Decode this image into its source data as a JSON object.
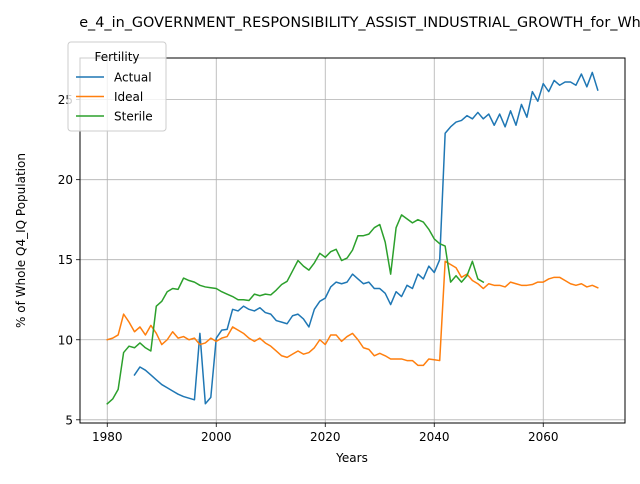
{
  "chart_data": {
    "type": "line",
    "title": "e_4_in_GOVERNMENT_RESPONSIBILITY_ASSIST_INDUSTRIAL_GROWTH_for_Wh",
    "xlabel": "Years",
    "ylabel": "% of Whole Q4_IQ Population",
    "xlim": [
      1975,
      2075
    ],
    "ylim": [
      4.8,
      27.6
    ],
    "xticks": [
      1980,
      2000,
      2020,
      2040,
      2060
    ],
    "yticks": [
      5,
      10,
      15,
      20,
      25
    ],
    "grid": true,
    "legend": {
      "title": "Fertility",
      "placement": "upper-left"
    },
    "series": [
      {
        "name": "Actual",
        "color": "#1f77b4",
        "x": [
          1985,
          1986,
          1987,
          1988,
          1989,
          1990,
          1991,
          1992,
          1993,
          1994,
          1995,
          1996,
          1997,
          1998,
          1999,
          2000,
          2001,
          2002,
          2003,
          2004,
          2005,
          2006,
          2007,
          2008,
          2009,
          2010,
          2011,
          2012,
          2013,
          2014,
          2015,
          2016,
          2017,
          2018,
          2019,
          2020,
          2021,
          2022,
          2023,
          2024,
          2025,
          2026,
          2027,
          2028,
          2029,
          2030,
          2031,
          2032,
          2033,
          2034,
          2035,
          2036,
          2037,
          2038,
          2039,
          2040,
          2041,
          2042,
          2043,
          2044,
          2045,
          2046,
          2047,
          2048,
          2049,
          2050,
          2051,
          2052,
          2053,
          2054,
          2055,
          2056,
          2057,
          2058,
          2059,
          2060,
          2061,
          2062,
          2063,
          2064,
          2065,
          2066,
          2067,
          2068,
          2069,
          2070
        ],
        "y": [
          7.8,
          8.3,
          8.1,
          7.8,
          7.5,
          7.2,
          7.0,
          6.8,
          6.6,
          6.45,
          6.35,
          6.25,
          10.4,
          6.0,
          6.4,
          10.1,
          10.6,
          10.65,
          11.9,
          11.8,
          12.1,
          11.9,
          11.8,
          12.0,
          11.7,
          11.6,
          11.2,
          11.1,
          11.0,
          11.5,
          11.6,
          11.3,
          10.8,
          11.9,
          12.4,
          12.6,
          13.3,
          13.6,
          13.5,
          13.6,
          14.1,
          13.8,
          13.5,
          13.6,
          13.2,
          13.2,
          12.9,
          12.2,
          13.0,
          12.7,
          13.4,
          13.2,
          14.1,
          13.8,
          14.6,
          14.2,
          15.0,
          22.9,
          23.3,
          23.6,
          23.7,
          24.0,
          23.8,
          24.2,
          23.8,
          24.1,
          23.4,
          24.1,
          23.3,
          24.3,
          23.4,
          24.7,
          23.9,
          25.5,
          24.9,
          26.0,
          25.5,
          26.2,
          25.9,
          26.1,
          26.1,
          25.9,
          26.6,
          25.8,
          26.7,
          25.6
        ]
      },
      {
        "name": "Ideal",
        "color": "#ff7f0e",
        "x": [
          1980,
          1981,
          1982,
          1983,
          1984,
          1985,
          1986,
          1987,
          1988,
          1989,
          1990,
          1991,
          1992,
          1993,
          1994,
          1995,
          1996,
          1997,
          1998,
          1999,
          2000,
          2001,
          2002,
          2003,
          2004,
          2005,
          2006,
          2007,
          2008,
          2009,
          2010,
          2011,
          2012,
          2013,
          2014,
          2015,
          2016,
          2017,
          2018,
          2019,
          2020,
          2021,
          2022,
          2023,
          2024,
          2025,
          2026,
          2027,
          2028,
          2029,
          2030,
          2031,
          2032,
          2033,
          2034,
          2035,
          2036,
          2037,
          2038,
          2039,
          2040,
          2041,
          2042,
          2043,
          2044,
          2045,
          2046,
          2047,
          2048,
          2049,
          2050,
          2051,
          2052,
          2053,
          2054,
          2055,
          2056,
          2057,
          2058,
          2059,
          2060,
          2061,
          2062,
          2063,
          2064,
          2065,
          2066,
          2067,
          2068,
          2069,
          2070
        ],
        "y": [
          10.0,
          10.1,
          10.3,
          11.6,
          11.1,
          10.5,
          10.8,
          10.3,
          10.9,
          10.4,
          9.7,
          10.0,
          10.5,
          10.1,
          10.2,
          10.0,
          10.1,
          9.7,
          9.8,
          10.1,
          9.9,
          10.1,
          10.2,
          10.8,
          10.6,
          10.4,
          10.1,
          9.9,
          10.1,
          9.8,
          9.6,
          9.3,
          9.0,
          8.9,
          9.1,
          9.3,
          9.1,
          9.2,
          9.5,
          10.0,
          9.7,
          10.3,
          10.3,
          9.9,
          10.2,
          10.4,
          10.0,
          9.5,
          9.4,
          9.0,
          9.15,
          9.0,
          8.8,
          8.8,
          8.8,
          8.7,
          8.7,
          8.4,
          8.4,
          8.8,
          8.75,
          8.7,
          14.9,
          14.7,
          14.5,
          13.9,
          14.1,
          13.7,
          13.5,
          13.2,
          13.5,
          13.4,
          13.4,
          13.3,
          13.6,
          13.5,
          13.4,
          13.4,
          13.45,
          13.6,
          13.6,
          13.8,
          13.9,
          13.9,
          13.7,
          13.5,
          13.4,
          13.5,
          13.3,
          13.4,
          13.25
        ]
      },
      {
        "name": "Sterile",
        "color": "#2ca02c",
        "x": [
          1980,
          1981,
          1982,
          1983,
          1984,
          1985,
          1986,
          1987,
          1988,
          1989,
          1990,
          1991,
          1992,
          1993,
          1994,
          1995,
          1996,
          1997,
          1998,
          1999,
          2000,
          2001,
          2002,
          2003,
          2004,
          2005,
          2006,
          2007,
          2008,
          2009,
          2010,
          2011,
          2012,
          2013,
          2014,
          2015,
          2016,
          2017,
          2018,
          2019,
          2020,
          2021,
          2022,
          2023,
          2024,
          2025,
          2026,
          2027,
          2028,
          2029,
          2030,
          2031,
          2032,
          2033,
          2034,
          2035,
          2036,
          2037,
          2038,
          2039,
          2040,
          2041,
          2042,
          2043,
          2044,
          2045,
          2046,
          2047,
          2048,
          2049
        ],
        "y": [
          6.0,
          6.3,
          6.9,
          9.2,
          9.6,
          9.5,
          9.8,
          9.5,
          9.3,
          12.1,
          12.4,
          13.0,
          13.2,
          13.15,
          13.85,
          13.7,
          13.6,
          13.4,
          13.3,
          13.25,
          13.2,
          13.0,
          12.85,
          12.7,
          12.5,
          12.5,
          12.45,
          12.85,
          12.75,
          12.85,
          12.8,
          13.1,
          13.45,
          13.65,
          14.3,
          14.95,
          14.6,
          14.35,
          14.8,
          15.4,
          15.15,
          15.5,
          15.65,
          14.95,
          15.1,
          15.6,
          16.5,
          16.5,
          16.6,
          17.0,
          17.2,
          16.1,
          14.1,
          17.0,
          17.8,
          17.55,
          17.3,
          17.5,
          17.35,
          16.9,
          16.3,
          16.0,
          15.85,
          13.6,
          14.0,
          13.6,
          14.0,
          14.9,
          13.8,
          13.6
        ]
      }
    ]
  }
}
